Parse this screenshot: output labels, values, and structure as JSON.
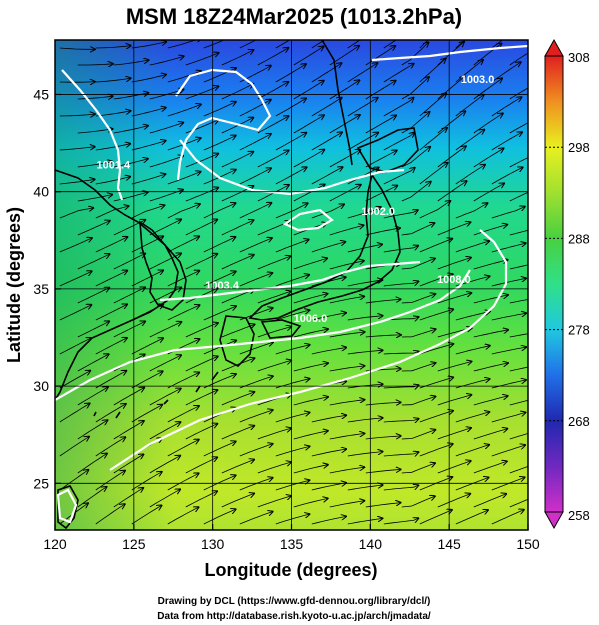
{
  "title": "MSM 18Z24Mar2025 (1013.2hPa)",
  "x_axis": {
    "label": "Longitude (degrees)",
    "ticks": [
      "120",
      "125",
      "130",
      "135",
      "140",
      "145",
      "150"
    ],
    "range": [
      120,
      150
    ]
  },
  "y_axis": {
    "label": "Latitude  (degrees)",
    "ticks": [
      "25",
      "30",
      "35",
      "40",
      "45"
    ],
    "range": [
      22.6,
      47.8
    ]
  },
  "colorbar": {
    "ticks": [
      "308",
      "298",
      "288",
      "278",
      "268",
      "258"
    ],
    "range": [
      258,
      308
    ],
    "colors": [
      "#d030c8",
      "#2028b0",
      "#2070e8",
      "#20c8e0",
      "#30e088",
      "#48d040",
      "#a0e030",
      "#e8f020",
      "#f0b020",
      "#f05020",
      "#e02020"
    ]
  },
  "isobars": [
    {
      "label": "1001.4",
      "lon": 123.7,
      "lat": 41.2
    },
    {
      "label": "1002.0",
      "lon": 140.5,
      "lat": 38.8
    },
    {
      "label": "1003.4",
      "lon": 130.6,
      "lat": 35.0
    },
    {
      "label": "1003.0",
      "lon": 146.8,
      "lat": 45.6
    },
    {
      "label": "1006.0",
      "lon": 136.2,
      "lat": 33.3
    },
    {
      "label": "1008.0",
      "lon": 145.3,
      "lat": 35.3
    }
  ],
  "credits": {
    "line1": "Drawing by DCL (https://www.gfd-dennou.org/library/dcl/)",
    "line2": "Data from http://database.rish.kyoto-u.ac.jp/arch/jmadata/"
  }
}
